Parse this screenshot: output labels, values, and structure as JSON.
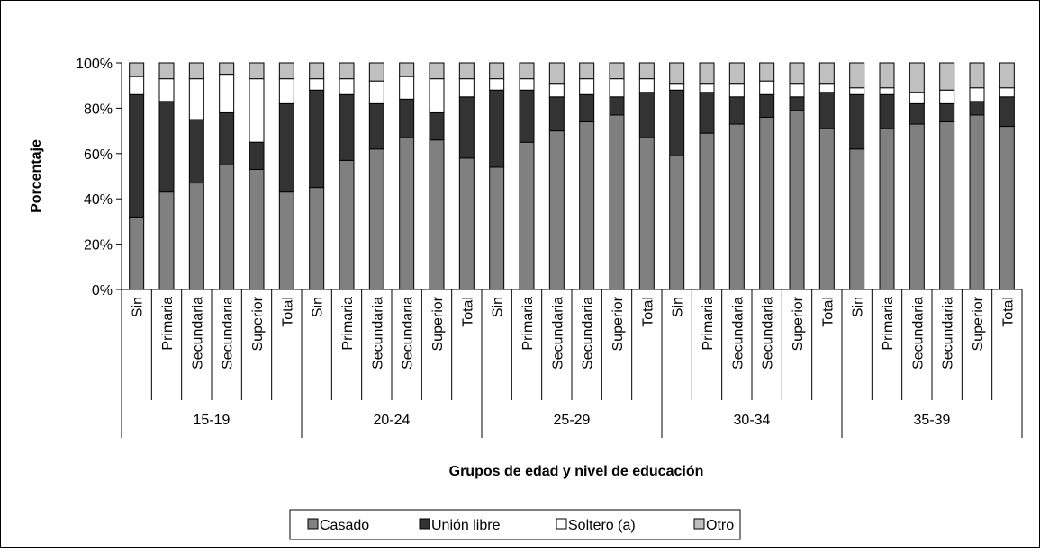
{
  "chart_data": {
    "type": "bar",
    "stacked": true,
    "x_label": "Grupos de edad y nivel de educación",
    "y_label": "Porcentaje",
    "groups": [
      {
        "label": "15-19",
        "categories": [
          "Sin",
          "Primaria",
          "Secundaria",
          "Secundaria",
          "Superior",
          "Total"
        ]
      },
      {
        "label": "20-24",
        "categories": [
          "Sin",
          "Primaria",
          "Secundaria",
          "Secundaria",
          "Superior",
          "Total"
        ]
      },
      {
        "label": "25-29",
        "categories": [
          "Sin",
          "Primaria",
          "Secundaria",
          "Secundaria",
          "Superior",
          "Total"
        ]
      },
      {
        "label": "30-34",
        "categories": [
          "Sin",
          "Primaria",
          "Secundaria",
          "Secundaria",
          "Superior",
          "Total"
        ]
      },
      {
        "label": "35-39",
        "categories": [
          "Sin",
          "Primaria",
          "Secundaria",
          "Secundaria",
          "Superior",
          "Total"
        ]
      }
    ],
    "series": [
      {
        "name": "Casado",
        "color": "#808080",
        "values": [
          32,
          43,
          47,
          55,
          53,
          43,
          45,
          57,
          62,
          67,
          66,
          58,
          54,
          65,
          70,
          74,
          77,
          67,
          59,
          69,
          73,
          76,
          79,
          71,
          62,
          71,
          73,
          74,
          77,
          72
        ]
      },
      {
        "name": "Unión libre",
        "color": "#333333",
        "values": [
          54,
          40,
          28,
          23,
          12,
          39,
          43,
          29,
          20,
          17,
          12,
          27,
          34,
          23,
          15,
          12,
          8,
          20,
          29,
          18,
          12,
          10,
          6,
          16,
          24,
          15,
          9,
          8,
          6,
          13
        ]
      },
      {
        "name": "Soltero (a)",
        "color": "#ffffff",
        "values": [
          8,
          10,
          18,
          17,
          28,
          11,
          5,
          7,
          10,
          10,
          15,
          8,
          5,
          5,
          6,
          7,
          8,
          6,
          3,
          4,
          6,
          6,
          6,
          4,
          3,
          3,
          5,
          6,
          6,
          4
        ]
      },
      {
        "name": "Otro",
        "color": "#c0c0c0",
        "values": [
          6,
          7,
          7,
          5,
          7,
          7,
          7,
          7,
          8,
          6,
          7,
          7,
          7,
          7,
          9,
          7,
          7,
          7,
          9,
          9,
          9,
          8,
          9,
          9,
          11,
          11,
          13,
          12,
          11,
          11
        ]
      }
    ],
    "ylim": [
      0,
      100
    ],
    "yticks": [
      {
        "value": 0,
        "label": "0%"
      },
      {
        "value": 20,
        "label": "20%"
      },
      {
        "value": 40,
        "label": "40%"
      },
      {
        "value": 60,
        "label": "60%"
      },
      {
        "value": 80,
        "label": "80%"
      },
      {
        "value": 100,
        "label": "100%"
      }
    ],
    "legend": "bottom"
  }
}
